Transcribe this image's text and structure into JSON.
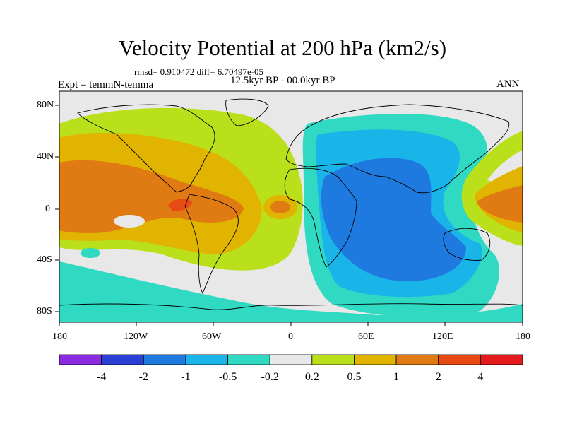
{
  "header": {
    "title": "Velocity Potential at 200 hPa (km2/s)",
    "stats": "rmsd= 0.910472 diff= 6.70497e-05",
    "period": "12.5kyr BP - 00.0kyr BP",
    "experiment": "Expt = temmN-temma",
    "season": "ANN"
  },
  "axes": {
    "lon_ticks": [
      "180",
      "120W",
      "60W",
      "0",
      "60E",
      "120E",
      "180"
    ],
    "lat_ticks": [
      "80N",
      "40N",
      "0",
      "40S",
      "80S"
    ]
  },
  "colorbar": {
    "labels": [
      "-4",
      "-2",
      "-1",
      "-0.5",
      "-0.2",
      "0.2",
      "0.5",
      "1",
      "2",
      "4"
    ],
    "colors": [
      "#8a2be2",
      "#2a3fd6",
      "#1f7ae0",
      "#19b4e8",
      "#2fd9c2",
      "#e8e8e8",
      "#b9e01a",
      "#e0b400",
      "#e07a12",
      "#e84a14",
      "#e41a1c"
    ]
  },
  "colors": {
    "land_outline": "#000000",
    "frame": "#000000"
  }
}
